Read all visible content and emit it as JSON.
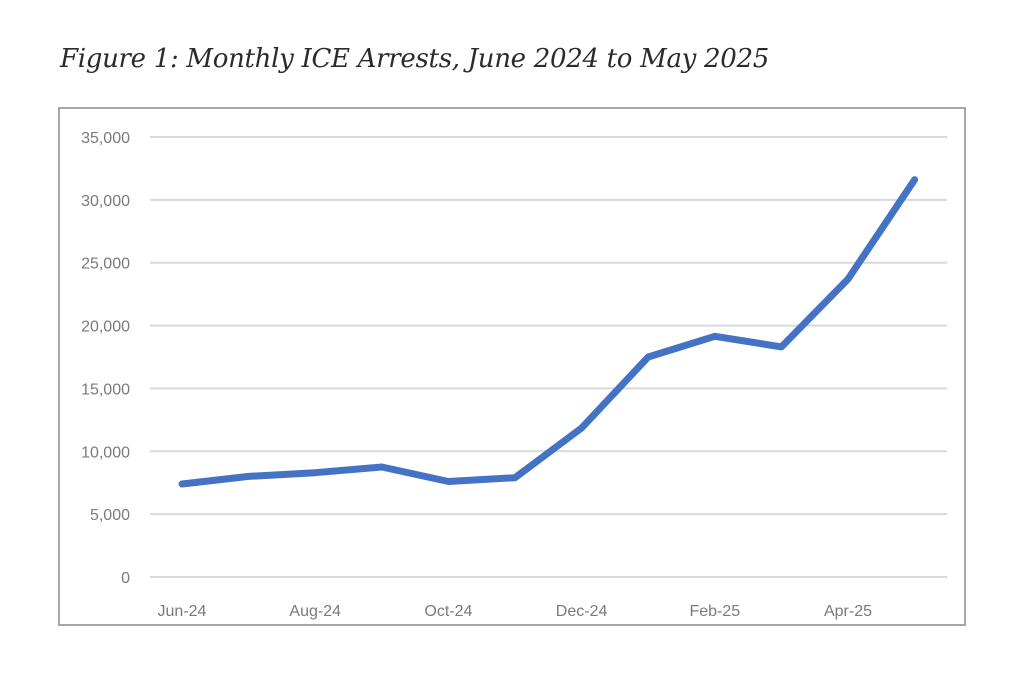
{
  "figure": {
    "title": "Figure 1: Monthly ICE Arrests, June 2024 to May 2025"
  },
  "chart_data": {
    "type": "line",
    "title": "Figure 1: Monthly ICE Arrests, June 2024 to May 2025",
    "xlabel": "",
    "ylabel": "",
    "x": [
      "Jun-24",
      "Jul-24",
      "Aug-24",
      "Sep-24",
      "Oct-24",
      "Nov-24",
      "Dec-24",
      "Jan-25",
      "Feb-25",
      "Mar-25",
      "Apr-25",
      "May-25"
    ],
    "x_tick_labels": [
      "Jun-24",
      "Aug-24",
      "Oct-24",
      "Dec-24",
      "Feb-25",
      "Apr-25"
    ],
    "y_tick_labels": [
      "0",
      "5,000",
      "10,000",
      "15,000",
      "20,000",
      "25,000",
      "30,000",
      "35,000"
    ],
    "y_ticks": [
      0,
      5000,
      10000,
      15000,
      20000,
      25000,
      30000,
      35000
    ],
    "ylim": [
      0,
      35000
    ],
    "grid": true,
    "legend": "none",
    "series": [
      {
        "name": "Monthly ICE Arrests",
        "color": "#4472c4",
        "values": [
          7400,
          8000,
          8300,
          8750,
          7600,
          7900,
          11850,
          17500,
          19150,
          18300,
          23700,
          31600
        ]
      }
    ]
  }
}
